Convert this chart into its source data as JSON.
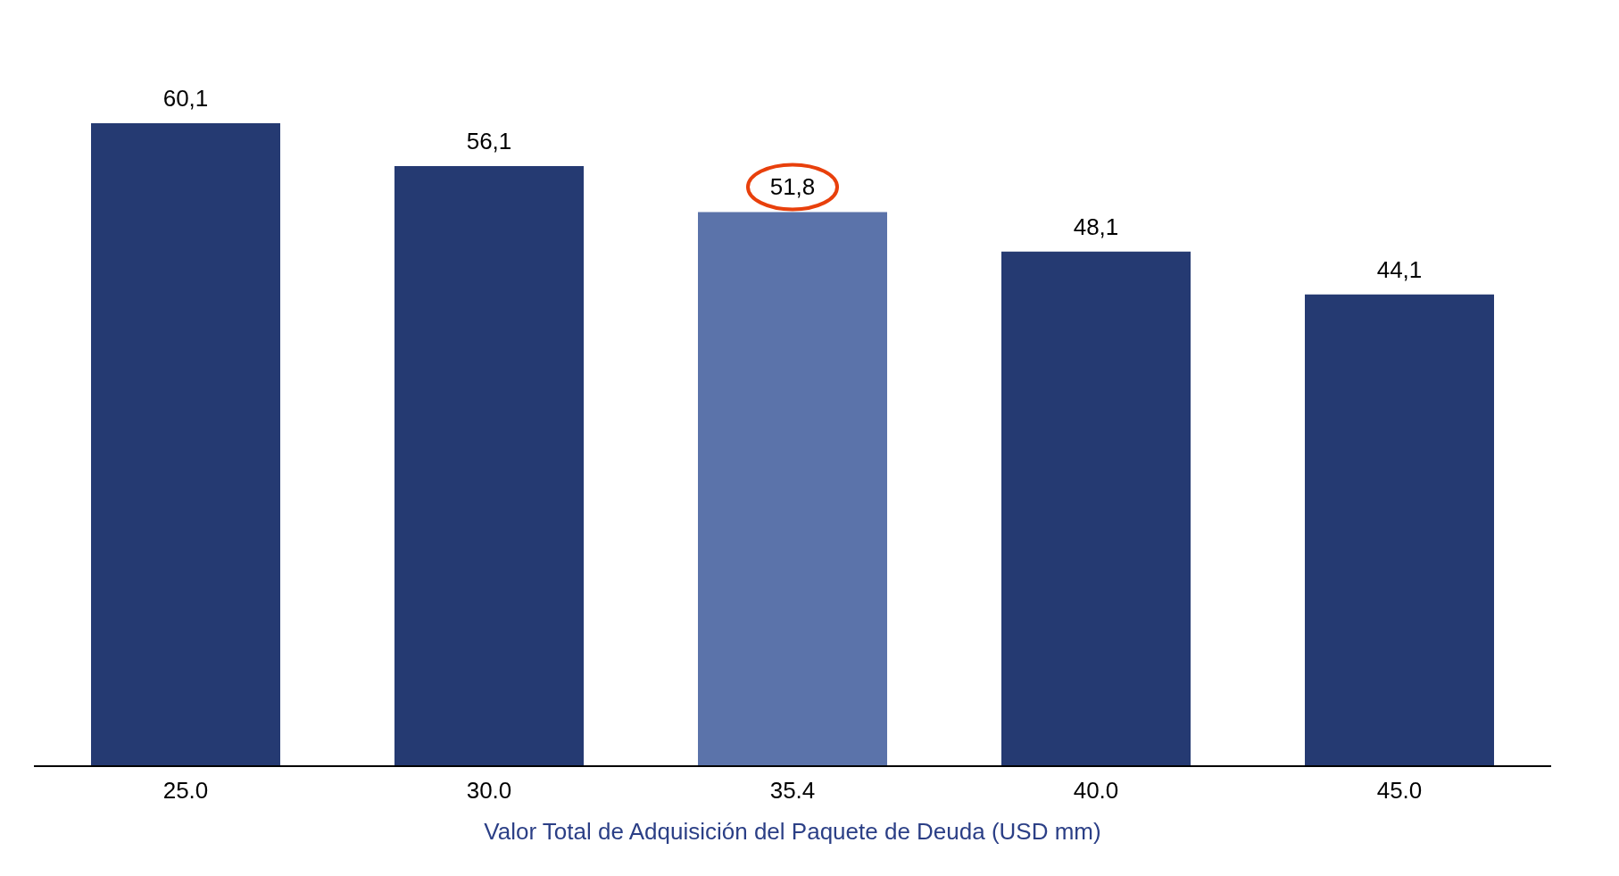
{
  "chart_data": {
    "type": "bar",
    "xlabel": "Valor Total de Adquisición del Paquete de Deuda (USD mm)",
    "categories": [
      "25.0",
      "30.0",
      "35.4",
      "40.0",
      "45.0"
    ],
    "values": [
      60.1,
      56.1,
      51.8,
      48.1,
      44.1
    ],
    "value_labels": [
      "60,1",
      "56,1",
      "51,8",
      "48,1",
      "44,1"
    ],
    "colors": [
      "#253a72",
      "#253a72",
      "#5b73aa",
      "#253a72",
      "#253a72"
    ],
    "grid": false,
    "legend": false
  }
}
